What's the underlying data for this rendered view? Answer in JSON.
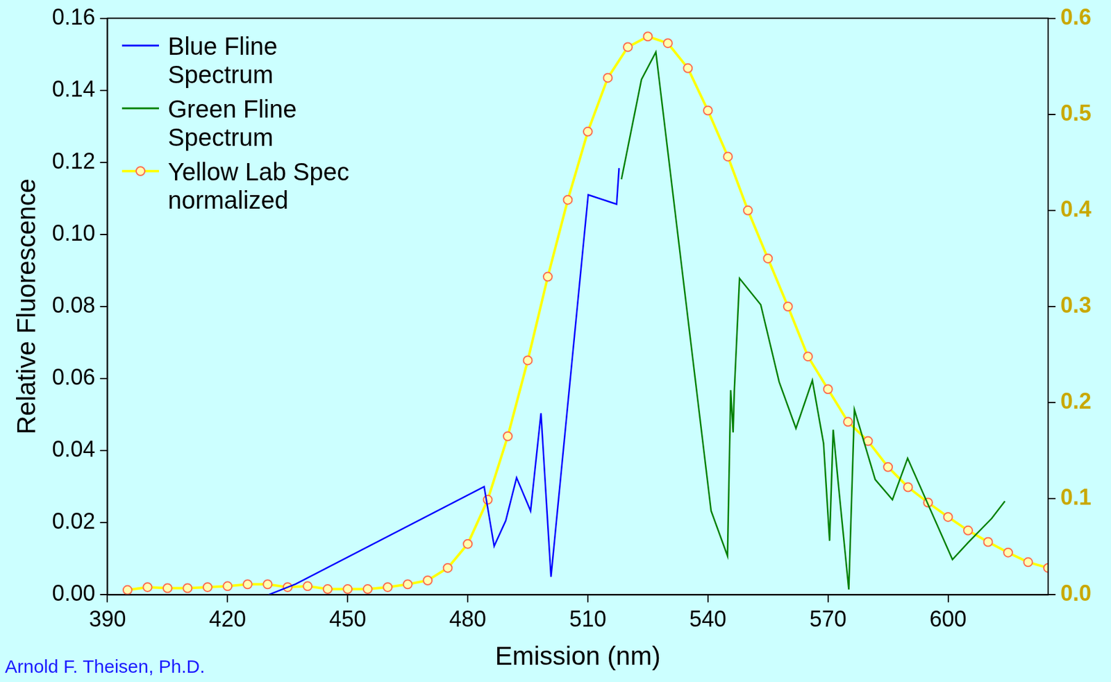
{
  "chart_data": {
    "type": "line",
    "x_label": "Emission (nm)",
    "y_label": "Relative Fluorescence",
    "annotations": [
      "Arnold F. Theisen, Ph.D."
    ],
    "xlim": [
      390,
      625
    ],
    "xticks": [
      390,
      420,
      450,
      480,
      510,
      540,
      570,
      600
    ],
    "ylim": [
      0,
      0.16
    ],
    "yticks": [
      {
        "value": 0,
        "label": "0.00"
      },
      0.02,
      0.04,
      0.06,
      0.08,
      {
        "value": 0.1,
        "label": "0.10"
      },
      0.12,
      0.14,
      0.16
    ],
    "y2lim": [
      0,
      0.6
    ],
    "y2ticks": [
      {
        "value": 0,
        "label": "0.0"
      },
      0.1,
      0.2,
      0.3,
      0.4,
      0.5,
      0.6
    ],
    "grid": false,
    "legend": "upper left",
    "series": [
      {
        "name": "Blue Fline Spectrum",
        "color": "#0000ff",
        "marker": "none",
        "line_style": "solid",
        "x": [
          430.2,
          437.0,
          484.1,
          486.6,
          489.5,
          492.2,
          495.7,
          498.3,
          500.8,
          510.1,
          517.2,
          517.8
        ],
        "values": [
          0.0,
          0.003,
          0.03,
          0.0135,
          0.0206,
          0.0325,
          0.0233,
          0.0504,
          0.005,
          0.111,
          0.1084,
          0.1184
        ]
      },
      {
        "name": "Green Fline Spectrum",
        "color": "#008000",
        "marker": "none",
        "line_style": "solid",
        "x": [
          518.4,
          523.4,
          527.0,
          540.8,
          544.9,
          545.7,
          546.3,
          546.6,
          547.9,
          553.2,
          557.8,
          562.0,
          566.1,
          568.9,
          570.4,
          571.3,
          572.6,
          575.2,
          576.6,
          581.8,
          586.1,
          589.9,
          601.1,
          605.1,
          610.9,
          614.2
        ],
        "values": [
          0.1153,
          0.143,
          0.1506,
          0.0233,
          0.0108,
          0.0568,
          0.0451,
          0.0566,
          0.0878,
          0.0805,
          0.0591,
          0.0462,
          0.0595,
          0.042,
          0.015,
          0.0458,
          0.0306,
          0.0015,
          0.0514,
          0.032,
          0.0264,
          0.0379,
          0.0098,
          0.0146,
          0.0212,
          0.026
        ]
      },
      {
        "name": "Yellow Lab Spec normalized",
        "color": "#ffff00",
        "marker": "circle",
        "line_style": "solid",
        "axis": "y2",
        "x": [
          395,
          400,
          405,
          410,
          415,
          420,
          425,
          430,
          435,
          440,
          445,
          450,
          455,
          460,
          465,
          470,
          475,
          480,
          485,
          490,
          495,
          500,
          505,
          510,
          515,
          520,
          525,
          530,
          535,
          540,
          545,
          550,
          555,
          560,
          565,
          570,
          575,
          580,
          585,
          590,
          595,
          600,
          605,
          610,
          615,
          620,
          625
        ],
        "values": [
          0.005,
          0.008,
          0.007,
          0.007,
          0.008,
          0.009,
          0.011,
          0.011,
          0.008,
          0.009,
          0.006,
          0.006,
          0.006,
          0.008,
          0.011,
          0.015,
          0.028,
          0.053,
          0.099,
          0.165,
          0.244,
          0.331,
          0.411,
          0.482,
          0.538,
          0.57,
          0.581,
          0.574,
          0.548,
          0.504,
          0.456,
          0.4,
          0.35,
          0.3,
          0.248,
          0.214,
          0.18,
          0.16,
          0.133,
          0.112,
          0.096,
          0.081,
          0.067,
          0.055,
          0.044,
          0.034,
          0.028
        ]
      }
    ]
  }
}
